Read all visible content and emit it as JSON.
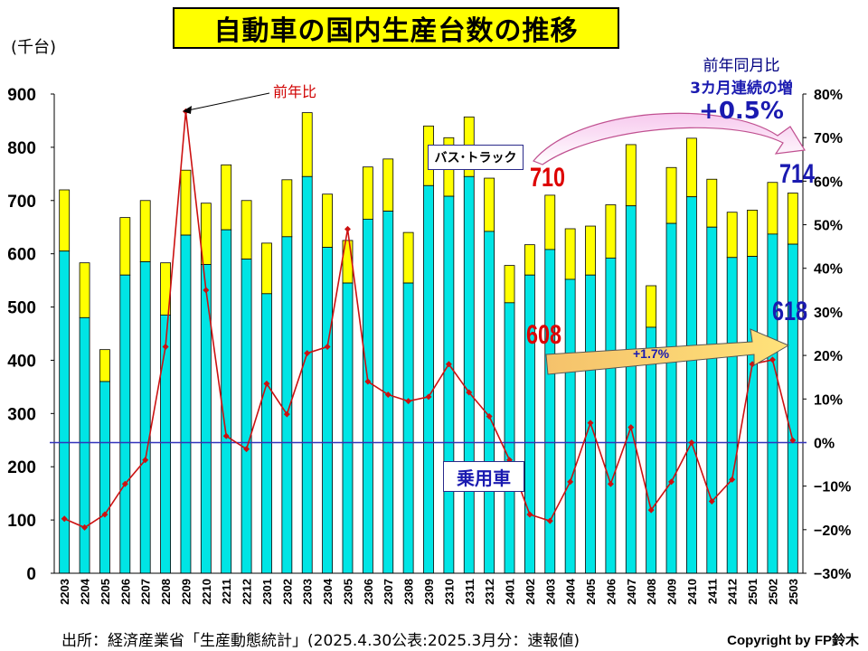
{
  "title": "自動車の国内生産台数の推移",
  "left_unit": "(千台)",
  "labels": {
    "yoy": "前年比",
    "bus_truck": "バス･トラック",
    "passenger": "乗用車",
    "same_month_line1": "前年同月比",
    "same_month_line2": "3カ月連続の増",
    "same_month_value": "+0.5%",
    "passenger_growth": "+1.7%",
    "prev_total": "710",
    "cur_total": "714",
    "prev_passenger": "608",
    "cur_passenger": "618"
  },
  "footer": {
    "source": "出所：経済産業省「生産動態統計」(2025.4.30公表:2025.3月分：速報値)",
    "copyright": "Copyright by FP鈴木"
  },
  "colors": {
    "passenger": "#00e5e5",
    "bus_truck": "#ffff00",
    "yoy_line": "#cc1111",
    "zero_line": "#3333bb",
    "accent_red": "#dd0000",
    "accent_blue": "#1a1ab0"
  },
  "chart_data": {
    "type": "bar",
    "stacked": true,
    "categories": [
      "2203",
      "2204",
      "2205",
      "2206",
      "2207",
      "2208",
      "2209",
      "2210",
      "2211",
      "2212",
      "2301",
      "2302",
      "2303",
      "2304",
      "2305",
      "2306",
      "2307",
      "2308",
      "2309",
      "2310",
      "2311",
      "2312",
      "2401",
      "2402",
      "2403",
      "2404",
      "2405",
      "2406",
      "2407",
      "2408",
      "2409",
      "2410",
      "2411",
      "2412",
      "2501",
      "2502",
      "2503"
    ],
    "series": [
      {
        "name": "乗用車",
        "axis": "left",
        "values": [
          605,
          480,
          360,
          560,
          585,
          485,
          635,
          580,
          645,
          590,
          525,
          632,
          745,
          612,
          545,
          665,
          680,
          545,
          728,
          708,
          745,
          642,
          508,
          560,
          608,
          552,
          560,
          592,
          690,
          462,
          657,
          707,
          650,
          593,
          595,
          637,
          618
        ]
      },
      {
        "name": "バス･トラック",
        "axis": "left",
        "values": [
          115,
          103,
          60,
          108,
          115,
          98,
          122,
          115,
          122,
          110,
          95,
          107,
          120,
          100,
          80,
          98,
          98,
          95,
          112,
          110,
          112,
          100,
          70,
          57,
          102,
          95,
          92,
          100,
          115,
          78,
          105,
          110,
          90,
          85,
          87,
          97,
          96
        ]
      },
      {
        "name": "前年比",
        "axis": "right",
        "type": "line",
        "values": [
          -17.5,
          -19.5,
          -16.5,
          -9.5,
          -4,
          22,
          76,
          35,
          1.5,
          -1.5,
          13.5,
          6.5,
          20.5,
          22,
          49,
          14,
          11,
          9.5,
          10.5,
          18,
          11.5,
          6,
          -4,
          -16.5,
          -18,
          -9,
          4.5,
          -9.5,
          3.5,
          -15.5,
          -9,
          0,
          -13.5,
          -8.5,
          18,
          19,
          0.5
        ]
      }
    ],
    "y_left": {
      "min": 0,
      "max": 900,
      "ticks": [
        0,
        100,
        200,
        300,
        400,
        500,
        600,
        700,
        800,
        900
      ]
    },
    "y_right": {
      "min": -30,
      "max": 80,
      "ticks": [
        -30,
        -20,
        -10,
        0,
        10,
        20,
        30,
        40,
        50,
        60,
        70,
        80
      ],
      "unit": "%"
    },
    "grid": false
  }
}
